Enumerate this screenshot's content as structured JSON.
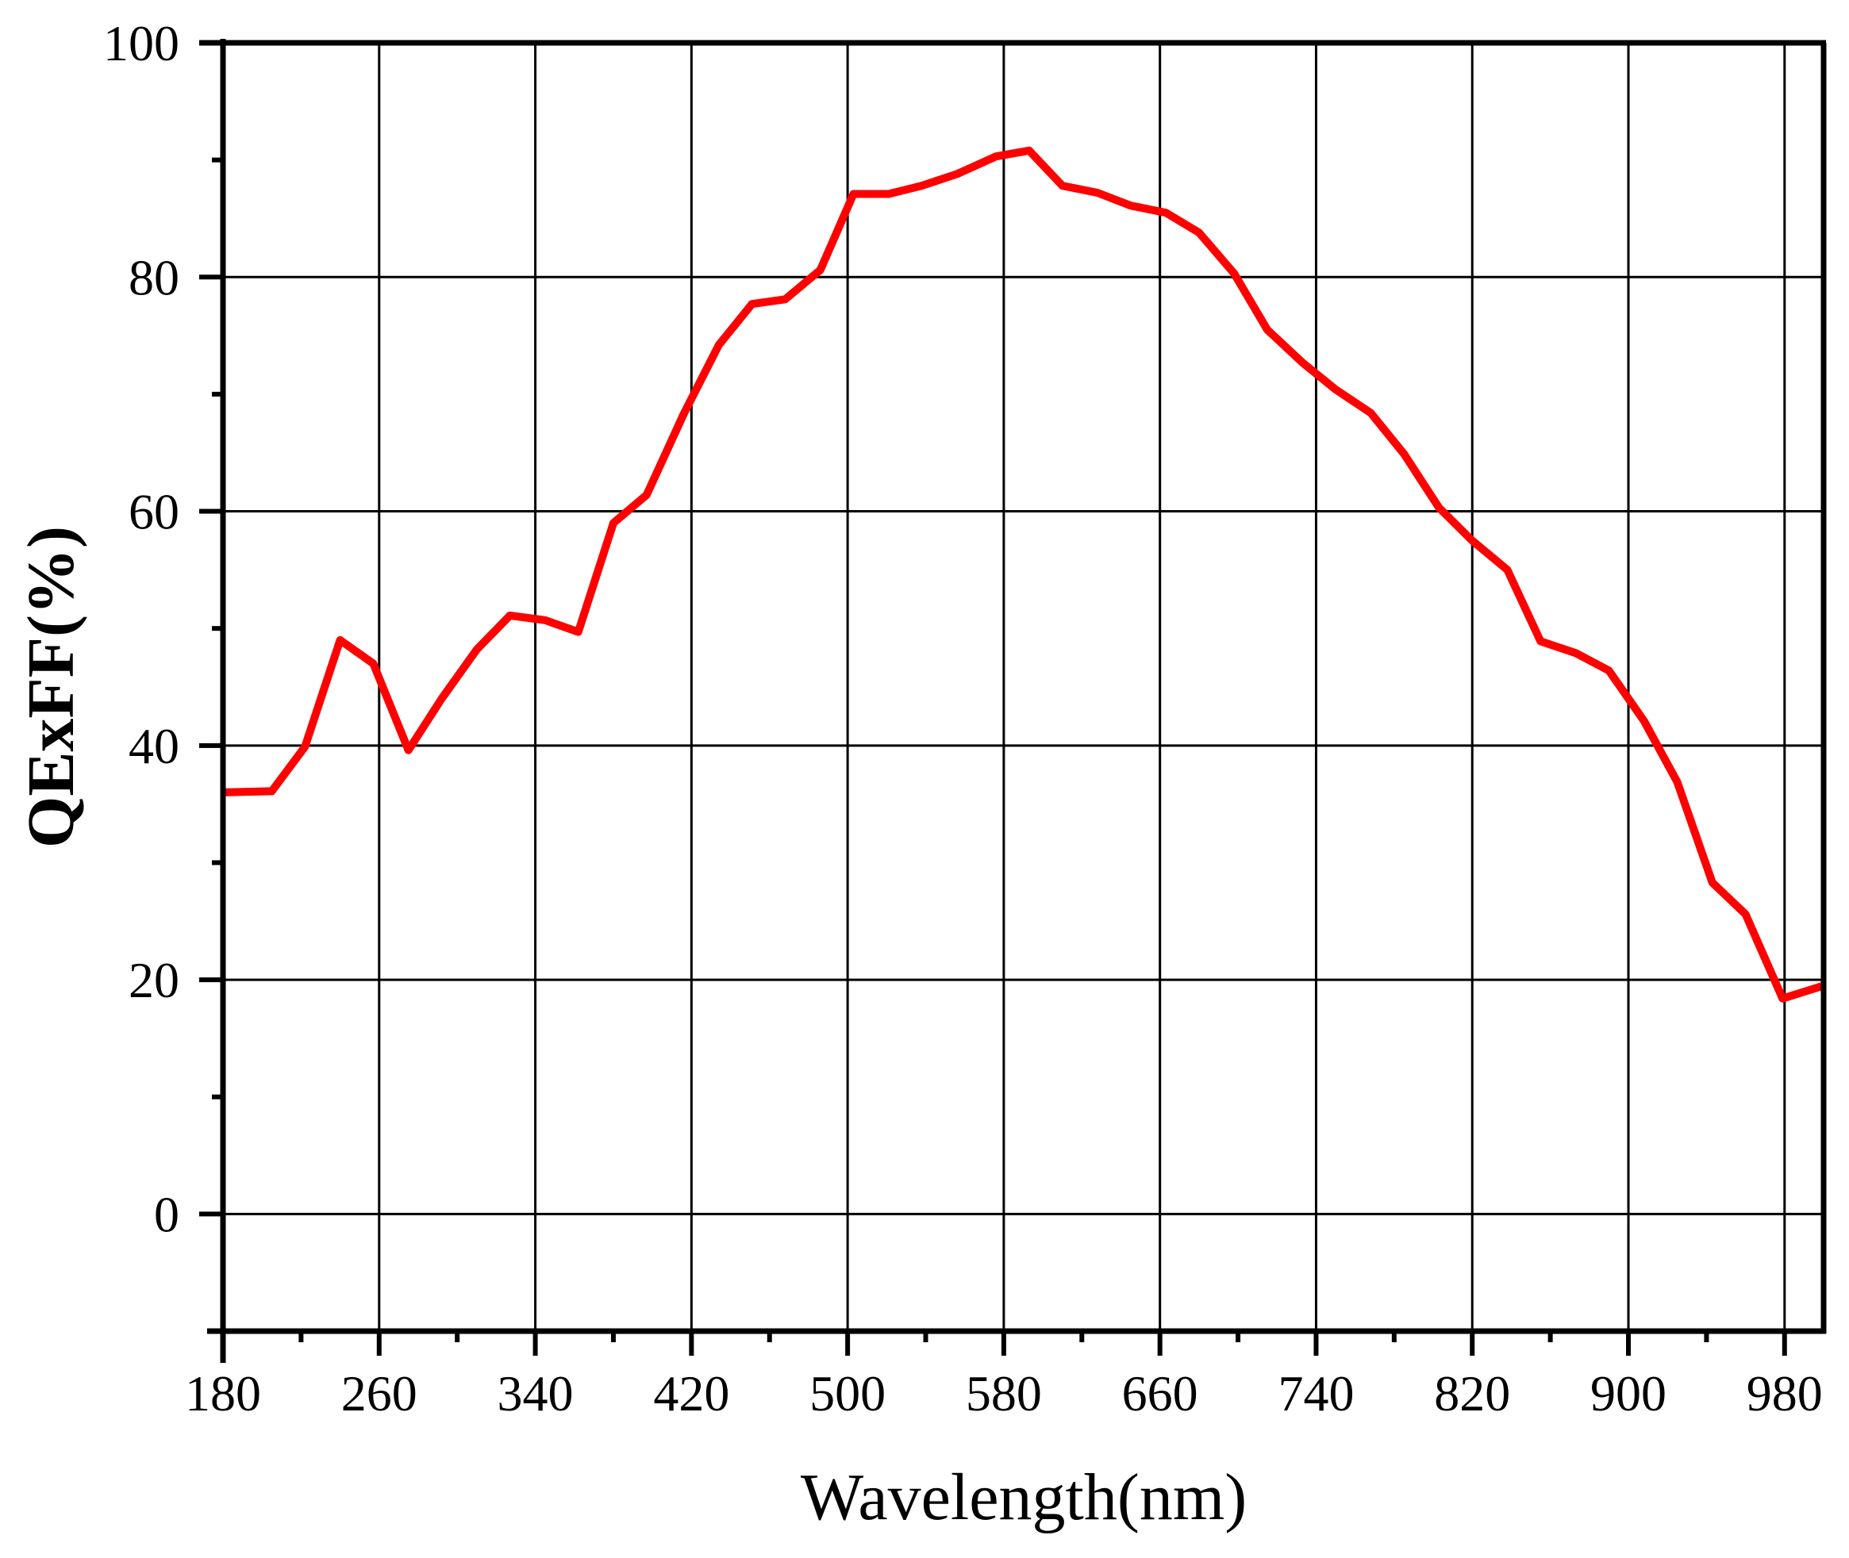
{
  "chart_data": {
    "type": "line",
    "title": "",
    "xlabel": "Wavelength(nm)",
    "ylabel": "QExFF(%)",
    "xlim": [
      180,
      1000
    ],
    "ylim": [
      -10,
      100
    ],
    "grid": true,
    "legend": null,
    "x_ticks": [
      180,
      260,
      340,
      420,
      500,
      580,
      660,
      740,
      820,
      900,
      980
    ],
    "y_ticks": [
      0,
      20,
      40,
      60,
      80,
      100
    ],
    "series": [
      {
        "name": "QExFF",
        "color": "#ff0000",
        "x": [
          180,
          205,
          222,
          240,
          257,
          275,
          292,
          310,
          327,
          345,
          362,
          380,
          397,
          416,
          434,
          451,
          468,
          486,
          503,
          521,
          538,
          556,
          576,
          593,
          610,
          628,
          645,
          663,
          680,
          698,
          715,
          733,
          750,
          768,
          785,
          803,
          820,
          838,
          855,
          873,
          890,
          908,
          925,
          943,
          960,
          979,
          1000
        ],
        "y": [
          36.0,
          36.1,
          39.9,
          49.0,
          47.0,
          39.6,
          44.0,
          48.2,
          51.1,
          50.7,
          49.7,
          59.0,
          61.4,
          68.3,
          74.2,
          77.7,
          78.1,
          80.6,
          87.1,
          87.1,
          87.8,
          88.8,
          90.3,
          90.8,
          87.8,
          87.2,
          86.1,
          85.5,
          83.8,
          80.3,
          75.5,
          72.7,
          70.4,
          68.4,
          64.9,
          60.3,
          57.5,
          55.0,
          48.9,
          47.9,
          46.4,
          42.1,
          36.9,
          28.3,
          25.6,
          18.4,
          19.5
        ]
      }
    ]
  }
}
